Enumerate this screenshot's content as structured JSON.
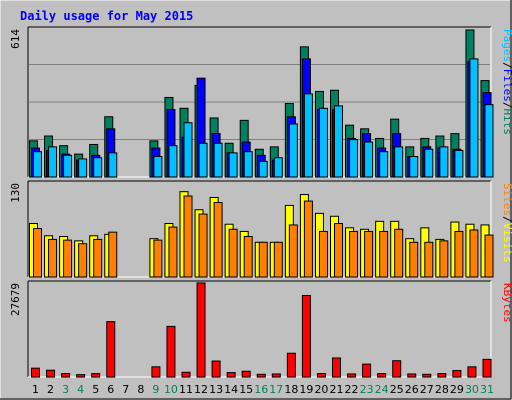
{
  "header": {
    "title": "Daily usage for May 2015"
  },
  "colors": {
    "background": "#C0C0C0",
    "title": "#0000FF",
    "hits": "#00805C",
    "files": "#0000FF",
    "pages": "#00C0FF",
    "visits": "#FFFF00",
    "sites": "#FF8000",
    "kbytes": "#FF0000",
    "weekend_day": "#00805C",
    "weekday": "#000000",
    "separator": "#808080",
    "frame_dark": "#000000",
    "frame_light": "#FFFFFF"
  },
  "chart_data": [
    {
      "type": "bar",
      "panel": "top",
      "max_label": "614",
      "ylim": [
        0,
        614
      ],
      "grid": true,
      "legend": [
        "Pages",
        "/",
        "Files",
        "/",
        "Hits"
      ],
      "legend_placement": "right",
      "x": [
        "1",
        "2",
        "3",
        "4",
        "5",
        "6",
        "7",
        "8",
        "9",
        "10",
        "11",
        "12",
        "13",
        "14",
        "15",
        "16",
        "17",
        "18",
        "19",
        "20",
        "21",
        "22",
        "23",
        "24",
        "25",
        "26",
        "27",
        "28",
        "29",
        "30",
        "31"
      ],
      "series": [
        {
          "name": "Hits",
          "values": [
            150,
            170,
            130,
            95,
            135,
            250,
            null,
            null,
            150,
            330,
            285,
            380,
            245,
            140,
            235,
            115,
            125,
            305,
            540,
            355,
            360,
            215,
            200,
            160,
            240,
            125,
            160,
            170,
            180,
            610,
            400
          ]
        },
        {
          "name": "Files",
          "values": [
            120,
            110,
            95,
            70,
            90,
            200,
            null,
            null,
            120,
            280,
            165,
            410,
            180,
            100,
            145,
            90,
            70,
            250,
            490,
            280,
            280,
            160,
            180,
            120,
            180,
            85,
            125,
            120,
            115,
            480,
            350
          ]
        },
        {
          "name": "Pages",
          "values": [
            105,
            125,
            90,
            75,
            80,
            100,
            null,
            null,
            85,
            130,
            225,
            140,
            140,
            100,
            105,
            65,
            80,
            220,
            345,
            285,
            295,
            155,
            145,
            105,
            125,
            85,
            115,
            125,
            110,
            490,
            300
          ]
        }
      ]
    },
    {
      "type": "bar",
      "panel": "middle",
      "max_label": "130",
      "ylim": [
        0,
        130
      ],
      "legend": [
        "Sites",
        "/",
        "Visits"
      ],
      "legend_placement": "right",
      "x": [
        "1",
        "2",
        "3",
        "4",
        "5",
        "6",
        "7",
        "8",
        "9",
        "10",
        "11",
        "12",
        "13",
        "14",
        "15",
        "16",
        "17",
        "18",
        "19",
        "20",
        "21",
        "22",
        "23",
        "24",
        "25",
        "26",
        "27",
        "28",
        "29",
        "30",
        "31"
      ],
      "series": [
        {
          "name": "Visits",
          "values": [
            74,
            57,
            56,
            50,
            57,
            59,
            null,
            null,
            53,
            74,
            118,
            93,
            110,
            73,
            63,
            48,
            48,
            99,
            114,
            88,
            84,
            68,
            66,
            77,
            77,
            53,
            68,
            52,
            76,
            73,
            72
          ]
        },
        {
          "name": "Sites",
          "values": [
            67,
            52,
            51,
            46,
            52,
            62,
            null,
            null,
            51,
            69,
            112,
            87,
            103,
            66,
            56,
            48,
            48,
            72,
            105,
            63,
            74,
            63,
            63,
            63,
            66,
            48,
            48,
            50,
            63,
            65,
            58
          ]
        }
      ]
    },
    {
      "type": "bar",
      "panel": "bottom",
      "max_label": "27679",
      "ylim": [
        0,
        27679
      ],
      "legend": [
        "KBytes"
      ],
      "legend_placement": "right",
      "x": [
        "1",
        "2",
        "3",
        "4",
        "5",
        "6",
        "7",
        "8",
        "9",
        "10",
        "11",
        "12",
        "13",
        "14",
        "15",
        "16",
        "17",
        "18",
        "19",
        "20",
        "21",
        "22",
        "23",
        "24",
        "25",
        "26",
        "27",
        "28",
        "29",
        "30",
        "31"
      ],
      "series": [
        {
          "name": "KBytes",
          "values": [
            2600,
            2000,
            1000,
            700,
            1000,
            16300,
            null,
            null,
            3000,
            14900,
            1400,
            27700,
            4700,
            1300,
            1700,
            800,
            900,
            7000,
            24000,
            1000,
            5600,
            900,
            3800,
            1000,
            4800,
            900,
            800,
            1000,
            1900,
            3000,
            5200
          ]
        }
      ]
    }
  ],
  "x_axis": {
    "labels": [
      {
        "text": "1",
        "weekend": false
      },
      {
        "text": "2",
        "weekend": false
      },
      {
        "text": "3",
        "weekend": true
      },
      {
        "text": "4",
        "weekend": true
      },
      {
        "text": "5",
        "weekend": false
      },
      {
        "text": "6",
        "weekend": false
      },
      {
        "text": "7",
        "weekend": false
      },
      {
        "text": "8",
        "weekend": false
      },
      {
        "text": "9",
        "weekend": true
      },
      {
        "text": "10",
        "weekend": true
      },
      {
        "text": "11",
        "weekend": false
      },
      {
        "text": "12",
        "weekend": false
      },
      {
        "text": "13",
        "weekend": false
      },
      {
        "text": "14",
        "weekend": false
      },
      {
        "text": "15",
        "weekend": false
      },
      {
        "text": "16",
        "weekend": true
      },
      {
        "text": "17",
        "weekend": true
      },
      {
        "text": "18",
        "weekend": false
      },
      {
        "text": "19",
        "weekend": false
      },
      {
        "text": "20",
        "weekend": false
      },
      {
        "text": "21",
        "weekend": false
      },
      {
        "text": "22",
        "weekend": false
      },
      {
        "text": "23",
        "weekend": true
      },
      {
        "text": "24",
        "weekend": true
      },
      {
        "text": "25",
        "weekend": false
      },
      {
        "text": "26",
        "weekend": false
      },
      {
        "text": "27",
        "weekend": false
      },
      {
        "text": "28",
        "weekend": false
      },
      {
        "text": "29",
        "weekend": false
      },
      {
        "text": "30",
        "weekend": true
      },
      {
        "text": "31",
        "weekend": true
      }
    ]
  }
}
